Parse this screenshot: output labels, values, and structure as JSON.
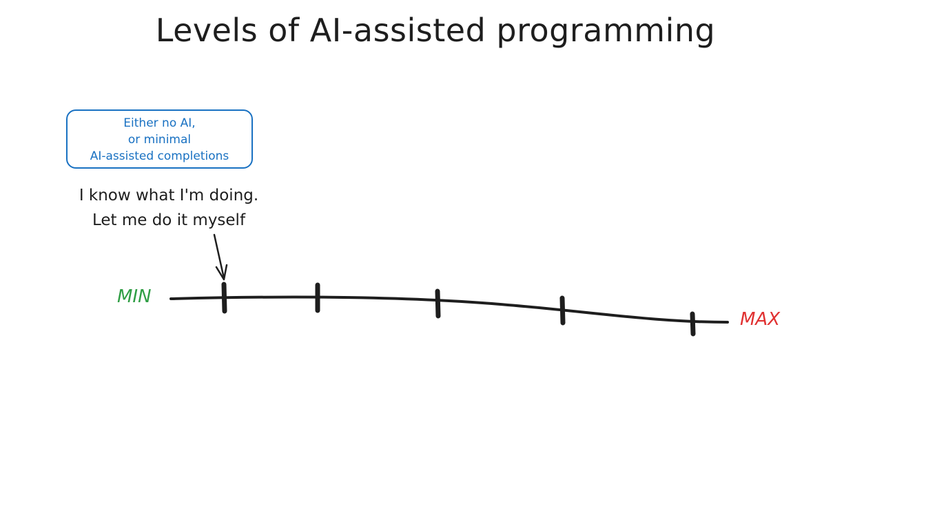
{
  "title": "Levels of AI-assisted programming",
  "note": {
    "lines": [
      "Either no AI,",
      "or minimal",
      "AI-assisted completions"
    ]
  },
  "caption": {
    "lines": [
      "I know what I'm doing.",
      "Let me do it myself"
    ]
  },
  "scale": {
    "min_label": "MIN",
    "max_label": "MAX",
    "tick_count": 5,
    "highlighted_tick": 1
  },
  "colors": {
    "ink": "#1e1e1e",
    "note": "#1971c2",
    "min": "#2f9e44",
    "max": "#e03131"
  }
}
